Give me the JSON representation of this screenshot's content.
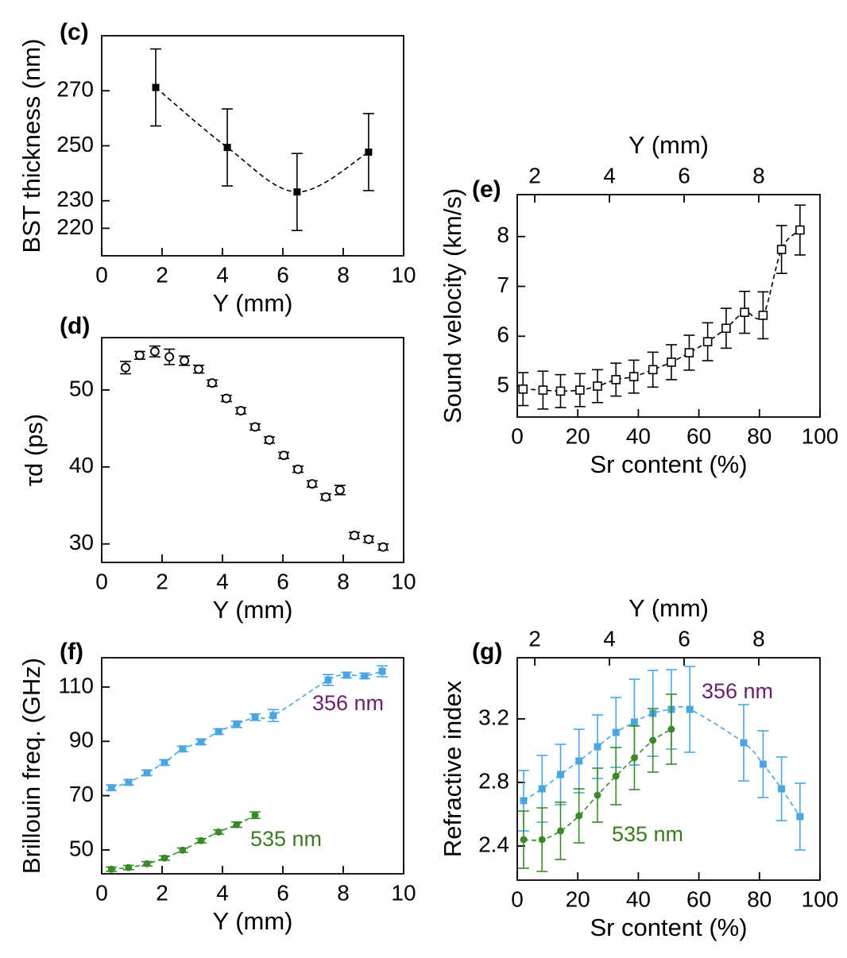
{
  "chart_data": [
    {
      "type": "scatter",
      "panel_label": "(c)",
      "x_label": "Y (mm)",
      "y_label": "BST thickness (nm)",
      "xlim": [
        0,
        10
      ],
      "xticks": [
        0,
        2,
        4,
        6,
        8,
        10
      ],
      "ylim": [
        210,
        290
      ],
      "yticks": [
        220,
        230,
        250,
        270
      ],
      "series": [
        {
          "color": "#000000",
          "marker": "filled-square",
          "fit_line": true,
          "x": [
            1.79,
            4.16,
            6.47,
            8.84
          ],
          "values": [
            271.2,
            249.4,
            233.2,
            247.7
          ],
          "errors": [
            14,
            14,
            14,
            14
          ]
        }
      ]
    },
    {
      "type": "scatter",
      "panel_label": "(d)",
      "x_label": "Y (mm)",
      "y_label": "τd (ps)",
      "xlim": [
        0,
        10
      ],
      "xticks": [
        0,
        2,
        4,
        6,
        8,
        10
      ],
      "ylim": [
        27.6,
        56.8
      ],
      "yticks": [
        30,
        40,
        50
      ],
      "series": [
        {
          "color": "#000000",
          "marker": "open-circle",
          "fit_line": false,
          "x": [
            0.79,
            1.26,
            1.76,
            2.24,
            2.74,
            3.21,
            3.66,
            4.13,
            4.61,
            5.08,
            5.55,
            6.03,
            6.5,
            6.97,
            7.42,
            7.89,
            8.37,
            8.84,
            9.32
          ],
          "values": [
            52.9,
            54.5,
            55.0,
            54.3,
            53.8,
            52.7,
            50.9,
            48.9,
            47.3,
            45.2,
            43.5,
            41.5,
            39.7,
            37.8,
            36.1,
            37.0,
            31.1,
            30.6,
            29.6
          ],
          "errors": [
            0.8,
            0.5,
            0.7,
            1.0,
            0.6,
            0.5,
            0.4,
            0.4,
            0.4,
            0.4,
            0.4,
            0.4,
            0.4,
            0.4,
            0.4,
            0.6,
            0.4,
            0.4,
            0.4
          ]
        }
      ]
    },
    {
      "type": "scatter",
      "panel_label": "(e)",
      "x_label": "Sr content (%)",
      "y_label": "Sound velocity (km/s)",
      "x2_label": "Y (mm)",
      "x2lim": [
        1.53,
        9.64
      ],
      "x2ticks": [
        2,
        4,
        6,
        8
      ],
      "xlim": [
        0,
        100
      ],
      "xticks": [
        0,
        20,
        40,
        60,
        80,
        100
      ],
      "ylim": [
        4.38,
        8.84
      ],
      "yticks": [
        5,
        6,
        7,
        8
      ],
      "series": [
        {
          "color": "#000000",
          "marker": "open-square",
          "fit_line": true,
          "x": [
            1.9,
            8.5,
            14.3,
            20.7,
            26.5,
            32.6,
            38.5,
            44.8,
            50.9,
            56.8,
            62.9,
            69.0,
            75.1,
            81.2,
            87.3,
            93.4
          ],
          "values": [
            4.94,
            4.92,
            4.9,
            4.92,
            5.0,
            5.13,
            5.19,
            5.33,
            5.48,
            5.67,
            5.89,
            6.16,
            6.48,
            6.42,
            7.74,
            8.13
          ],
          "errors": [
            0.33,
            0.38,
            0.33,
            0.33,
            0.33,
            0.33,
            0.33,
            0.35,
            0.35,
            0.35,
            0.38,
            0.4,
            0.42,
            0.47,
            0.48,
            0.5
          ]
        }
      ]
    },
    {
      "type": "scatter",
      "panel_label": "(f)",
      "x_label": "Y (mm)",
      "y_label": "Brillouin freq. (GHz)",
      "xlim": [
        0,
        10
      ],
      "xticks": [
        0,
        2,
        4,
        6,
        8,
        10
      ],
      "ylim": [
        41.2,
        120.8
      ],
      "yticks": [
        50,
        70,
        90,
        110
      ],
      "series": [
        {
          "name": "356 nm",
          "color": "#4aa6e0",
          "label_color": "#6a1f6e",
          "marker": "filled-square",
          "fit_line": true,
          "x": [
            0.32,
            0.89,
            1.5,
            2.08,
            2.68,
            3.29,
            3.87,
            4.47,
            5.08,
            5.68,
            7.5,
            8.11,
            8.71,
            9.29
          ],
          "values": [
            72.9,
            74.9,
            78.4,
            82.2,
            87.2,
            89.8,
            93.6,
            96.3,
            98.9,
            99.5,
            112.6,
            114.4,
            114.1,
            115.8
          ],
          "errors": [
            1.0,
            1.0,
            1.0,
            1.0,
            1.0,
            1.0,
            1.0,
            1.2,
            1.2,
            2.2,
            2.0,
            1.0,
            1.0,
            2.0
          ]
        },
        {
          "name": "535 nm",
          "color": "#3a8a2a",
          "label_color": "#3a7a20",
          "marker": "filled-circle",
          "fit_line": true,
          "x": [
            0.32,
            0.89,
            1.5,
            2.08,
            2.68,
            3.29,
            3.87,
            4.47,
            5.08
          ],
          "values": [
            42.9,
            43.5,
            44.9,
            47.0,
            49.9,
            53.4,
            56.6,
            59.3,
            62.8
          ],
          "errors": [
            0.8,
            0.8,
            0.8,
            0.8,
            0.8,
            0.8,
            0.8,
            1.0,
            1.2
          ]
        }
      ]
    },
    {
      "type": "scatter",
      "panel_label": "(g)",
      "x_label": "Sr content (%)",
      "y_label": "Refractive index",
      "x2_label": "Y (mm)",
      "x2lim": [
        1.53,
        9.64
      ],
      "x2ticks": [
        2,
        4,
        6,
        8
      ],
      "xlim": [
        0,
        100
      ],
      "xticks": [
        0,
        20,
        40,
        60,
        80,
        100
      ],
      "ylim": [
        2.185,
        3.585
      ],
      "yticks": [
        2.4,
        2.8,
        3.2
      ],
      "series": [
        {
          "name": "356 nm",
          "color": "#4aa6e0",
          "label_color": "#6a1f6e",
          "marker": "filled-square",
          "fit_line": true,
          "x": [
            2.1,
            8.2,
            14.3,
            20.4,
            26.5,
            32.6,
            38.7,
            44.8,
            50.9,
            57.0,
            74.8,
            81.2,
            87.3,
            93.4
          ],
          "values": [
            2.685,
            2.76,
            2.85,
            2.935,
            3.025,
            3.115,
            3.18,
            3.235,
            3.26,
            3.26,
            3.05,
            2.915,
            2.76,
            2.585
          ],
          "errors": [
            0.19,
            0.21,
            0.19,
            0.2,
            0.2,
            0.22,
            0.27,
            0.27,
            0.25,
            0.27,
            0.24,
            0.21,
            0.2,
            0.21
          ]
        },
        {
          "name": "535 nm",
          "color": "#3a8a2a",
          "label_color": "#3a7a20",
          "marker": "filled-circle",
          "fit_line": true,
          "x": [
            2.1,
            8.2,
            14.3,
            20.4,
            26.5,
            32.6,
            38.7,
            44.8,
            50.9
          ],
          "values": [
            2.44,
            2.44,
            2.495,
            2.59,
            2.72,
            2.84,
            2.955,
            3.065,
            3.135
          ],
          "errors": [
            0.18,
            0.2,
            0.18,
            0.17,
            0.17,
            0.18,
            0.2,
            0.2,
            0.22
          ]
        }
      ]
    }
  ]
}
